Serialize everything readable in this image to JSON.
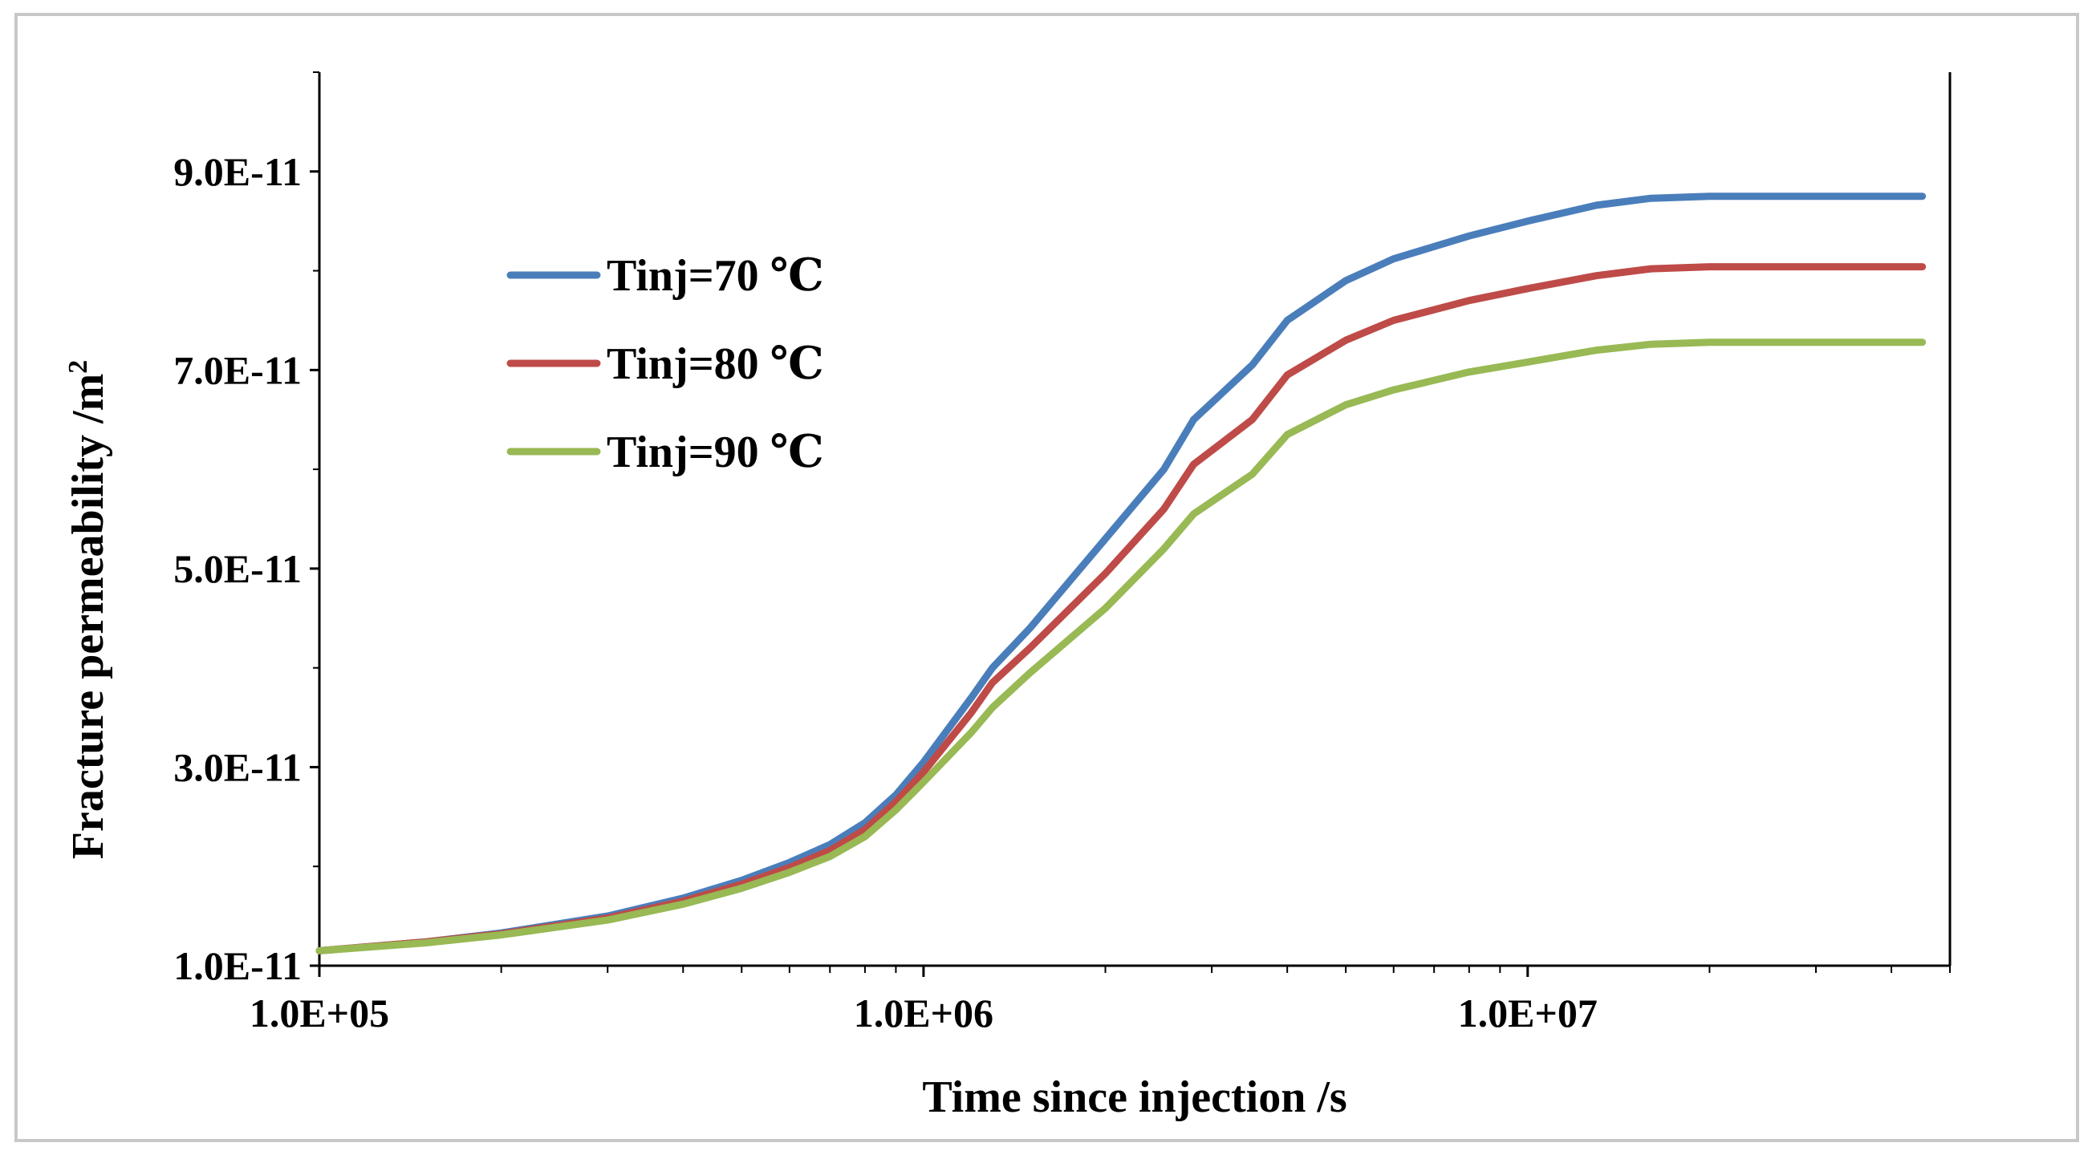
{
  "chart_data": {
    "type": "line",
    "title": "",
    "xlabel": "Time since injection /s",
    "ylabel_main": "Fracture permeability /m",
    "ylabel_sup": "2",
    "x_scale": "log",
    "xlim": [
      100000,
      50000000
    ],
    "ylim": [
      1e-11,
      1e-10
    ],
    "x_ticks": [
      100000,
      1000000,
      10000000
    ],
    "x_tick_labels": [
      "1.0E+05",
      "1.0E+06",
      "1.0E+07"
    ],
    "y_ticks": [
      1e-11,
      3e-11,
      5e-11,
      7e-11,
      9e-11
    ],
    "y_tick_labels": [
      "1.0E-11",
      "3.0E-11",
      "5.0E-11",
      "7.0E-11",
      "9.0E-11"
    ],
    "grid": false,
    "legend_position": "upper-left",
    "series": [
      {
        "name": "Tinj=70 ℃",
        "color": "#4a7ebb",
        "points": [
          [
            100000,
            1.15e-11
          ],
          [
            150000,
            1.24e-11
          ],
          [
            200000,
            1.33e-11
          ],
          [
            300000,
            1.5e-11
          ],
          [
            400000,
            1.68e-11
          ],
          [
            500000,
            1.86e-11
          ],
          [
            600000,
            2.04e-11
          ],
          [
            700000,
            2.22e-11
          ],
          [
            800000,
            2.44e-11
          ],
          [
            900000,
            2.72e-11
          ],
          [
            1000000,
            3.05e-11
          ],
          [
            1200000,
            3.7e-11
          ],
          [
            1300000,
            4e-11
          ],
          [
            1500000,
            4.4e-11
          ],
          [
            2000000,
            5.3e-11
          ],
          [
            2500000,
            6e-11
          ],
          [
            2800000,
            6.5e-11
          ],
          [
            3500000,
            7.05e-11
          ],
          [
            4000000,
            7.5e-11
          ],
          [
            5000000,
            7.9e-11
          ],
          [
            6000000,
            8.12e-11
          ],
          [
            8000000,
            8.35e-11
          ],
          [
            10000000,
            8.5e-11
          ],
          [
            13000000,
            8.66e-11
          ],
          [
            16000000,
            8.73e-11
          ],
          [
            20000000,
            8.75e-11
          ],
          [
            30000000,
            8.75e-11
          ],
          [
            45000000,
            8.75e-11
          ]
        ]
      },
      {
        "name": "Tinj=80 ℃",
        "color": "#be4b48",
        "points": [
          [
            100000,
            1.15e-11
          ],
          [
            150000,
            1.24e-11
          ],
          [
            200000,
            1.32e-11
          ],
          [
            300000,
            1.48e-11
          ],
          [
            400000,
            1.65e-11
          ],
          [
            500000,
            1.82e-11
          ],
          [
            600000,
            1.99e-11
          ],
          [
            700000,
            2.16e-11
          ],
          [
            800000,
            2.37e-11
          ],
          [
            900000,
            2.65e-11
          ],
          [
            1000000,
            2.95e-11
          ],
          [
            1200000,
            3.55e-11
          ],
          [
            1300000,
            3.85e-11
          ],
          [
            1500000,
            4.2e-11
          ],
          [
            2000000,
            4.95e-11
          ],
          [
            2500000,
            5.6e-11
          ],
          [
            2800000,
            6.05e-11
          ],
          [
            3500000,
            6.5e-11
          ],
          [
            4000000,
            6.95e-11
          ],
          [
            5000000,
            7.3e-11
          ],
          [
            6000000,
            7.5e-11
          ],
          [
            8000000,
            7.7e-11
          ],
          [
            10000000,
            7.82e-11
          ],
          [
            13000000,
            7.95e-11
          ],
          [
            16000000,
            8.02e-11
          ],
          [
            20000000,
            8.04e-11
          ],
          [
            30000000,
            8.04e-11
          ],
          [
            45000000,
            8.04e-11
          ]
        ]
      },
      {
        "name": "Tinj=90 ℃",
        "color": "#98b954",
        "points": [
          [
            100000,
            1.15e-11
          ],
          [
            150000,
            1.23e-11
          ],
          [
            200000,
            1.31e-11
          ],
          [
            300000,
            1.46e-11
          ],
          [
            400000,
            1.62e-11
          ],
          [
            500000,
            1.78e-11
          ],
          [
            600000,
            1.94e-11
          ],
          [
            700000,
            2.1e-11
          ],
          [
            800000,
            2.3e-11
          ],
          [
            900000,
            2.57e-11
          ],
          [
            1000000,
            2.85e-11
          ],
          [
            1200000,
            3.35e-11
          ],
          [
            1300000,
            3.6e-11
          ],
          [
            1500000,
            3.95e-11
          ],
          [
            2000000,
            4.6e-11
          ],
          [
            2500000,
            5.2e-11
          ],
          [
            2800000,
            5.55e-11
          ],
          [
            3500000,
            5.95e-11
          ],
          [
            4000000,
            6.35e-11
          ],
          [
            5000000,
            6.65e-11
          ],
          [
            6000000,
            6.8e-11
          ],
          [
            8000000,
            6.98e-11
          ],
          [
            10000000,
            7.08e-11
          ],
          [
            13000000,
            7.2e-11
          ],
          [
            16000000,
            7.26e-11
          ],
          [
            20000000,
            7.28e-11
          ],
          [
            30000000,
            7.28e-11
          ],
          [
            45000000,
            7.28e-11
          ]
        ]
      }
    ]
  }
}
